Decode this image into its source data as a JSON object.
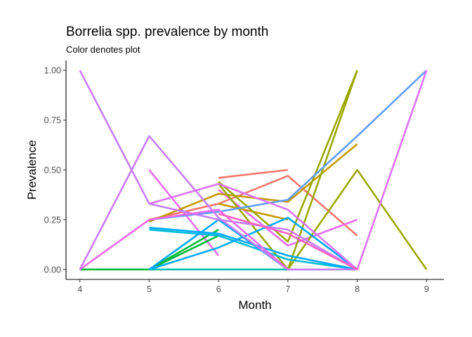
{
  "chart_data": {
    "type": "line",
    "title": "Borrelia spp. prevalence by month",
    "subtitle": "Color denotes plot",
    "xlabel": "Month",
    "ylabel": "Prevalence",
    "xlim": [
      3.8,
      9.25
    ],
    "ylim": [
      -0.05,
      1.05
    ],
    "x_ticks": [
      4,
      5,
      6,
      7,
      8,
      9
    ],
    "y_ticks": [
      0,
      0.25,
      0.5,
      0.75,
      1.0
    ],
    "y_tick_labels": [
      "0.00",
      "0.25",
      "0.50",
      "0.75",
      "1.00"
    ],
    "grid": false,
    "legend": "none",
    "series": [
      {
        "color": "#F8766D",
        "x": [
          6,
          7
        ],
        "y": [
          0.46,
          0.5
        ]
      },
      {
        "color": "#F8766D",
        "x": [
          5,
          6,
          7,
          8
        ],
        "y": [
          0.25,
          0.33,
          0.47,
          0.17
        ]
      },
      {
        "color": "#E76BF3",
        "x": [
          5,
          6
        ],
        "y": [
          0.5,
          0.07
        ]
      },
      {
        "color": "#E76BF3",
        "x": [
          6,
          7,
          8
        ],
        "y": [
          0.4,
          0.12,
          0.25
        ]
      },
      {
        "color": "#C49A00",
        "x": [
          5,
          6,
          7,
          8
        ],
        "y": [
          0.24,
          0.38,
          0.34,
          0.63
        ]
      },
      {
        "color": "#C49A00",
        "x": [
          6,
          7
        ],
        "y": [
          0.33,
          0.25
        ]
      },
      {
        "color": "#99A800",
        "x": [
          6,
          7,
          8
        ],
        "y": [
          0.44,
          0.14,
          1.0
        ]
      },
      {
        "color": "#99A800",
        "x": [
          7,
          8,
          9
        ],
        "y": [
          0.0,
          0.5,
          0.0
        ]
      },
      {
        "color": "#99A800",
        "x": [
          6,
          7,
          8
        ],
        "y": [
          0.43,
          0.0,
          1.0
        ]
      },
      {
        "color": "#00BA38",
        "x": [
          5,
          6
        ],
        "y": [
          0.0,
          0.2
        ]
      },
      {
        "color": "#00BA38",
        "x": [
          4,
          5,
          6
        ],
        "y": [
          0.0,
          0.0,
          0.17
        ]
      },
      {
        "color": "#00C0AF",
        "x": [
          5,
          6,
          7,
          8
        ],
        "y": [
          0.0,
          0.0,
          0.0,
          0.0
        ]
      },
      {
        "color": "#00BCD8",
        "x": [
          5,
          6,
          7,
          8
        ],
        "y": [
          0.2,
          0.17,
          0.05,
          0.0
        ]
      },
      {
        "color": "#00A9FF",
        "x": [
          5,
          6,
          7,
          8
        ],
        "y": [
          0.21,
          0.18,
          0.07,
          0.0
        ]
      },
      {
        "color": "#00A9FF",
        "x": [
          5,
          6,
          7,
          8
        ],
        "y": [
          0.0,
          0.11,
          0.26,
          0.0
        ]
      },
      {
        "color": "#00A9FF",
        "x": [
          5,
          6,
          7
        ],
        "y": [
          0.0,
          0.25,
          0.0
        ]
      },
      {
        "color": "#619CFF",
        "x": [
          5,
          6,
          7,
          8,
          9
        ],
        "y": [
          0.25,
          0.29,
          0.35,
          0.67,
          1.0
        ]
      },
      {
        "color": "#C77CFF",
        "x": [
          4,
          5,
          6,
          7,
          8
        ],
        "y": [
          1.0,
          0.33,
          0.25,
          0.2,
          0.0
        ]
      },
      {
        "color": "#C77CFF",
        "x": [
          4,
          5,
          6,
          7,
          8
        ],
        "y": [
          0.0,
          0.67,
          0.26,
          0.0,
          0.0
        ]
      },
      {
        "color": "#DB72FB",
        "x": [
          5,
          6,
          7,
          8,
          9
        ],
        "y": [
          0.33,
          0.43,
          0.3,
          0.0,
          1.0
        ]
      },
      {
        "color": "#ED68ED",
        "x": [
          4,
          5,
          6,
          7
        ],
        "y": [
          0.0,
          0.25,
          0.3,
          0.0
        ]
      },
      {
        "color": "#FF61C3",
        "x": [
          6,
          7,
          8
        ],
        "y": [
          0.28,
          0.18,
          0.0
        ]
      }
    ]
  }
}
